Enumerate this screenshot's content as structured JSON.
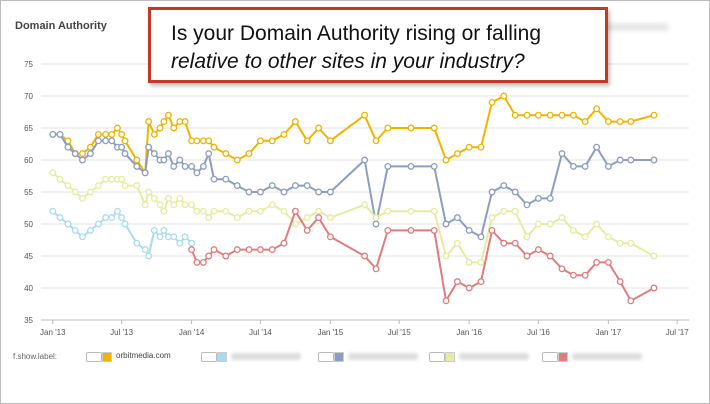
{
  "header": {
    "title": "Domain Authority"
  },
  "callout": {
    "line1": "Is your Domain Authority rising or falling",
    "line2": "relative to other sites in your industry?"
  },
  "legend": {
    "label": "f.show.label:",
    "items": [
      {
        "name": "orbitmedia.com",
        "color": "#f0b400"
      },
      {
        "name": "",
        "color": "#a9dcf0"
      },
      {
        "name": "",
        "color": "#8e9dbf"
      },
      {
        "name": "",
        "color": "#e6ec9e"
      },
      {
        "name": "",
        "color": "#e07c7c"
      }
    ]
  },
  "chart_data": {
    "type": "line",
    "title": "Domain Authority",
    "xlabel": "",
    "ylabel": "",
    "ylim": [
      35,
      75
    ],
    "yticks": [
      35,
      40,
      45,
      50,
      55,
      60,
      65,
      70,
      75
    ],
    "xlim": [
      "2012-12-01",
      "2017-08-01"
    ],
    "xticks": [
      {
        "date": "2013-01-01",
        "label": "Jan '13"
      },
      {
        "date": "2013-07-01",
        "label": "Jul '13"
      },
      {
        "date": "2014-01-01",
        "label": "Jan '14"
      },
      {
        "date": "2014-07-01",
        "label": "Jul '14"
      },
      {
        "date": "2015-01-01",
        "label": "Jan '15"
      },
      {
        "date": "2015-07-01",
        "label": "Jul '15"
      },
      {
        "date": "2016-01-01",
        "label": "Jan '16"
      },
      {
        "date": "2016-07-01",
        "label": "Jul '16"
      },
      {
        "date": "2017-01-01",
        "label": "Jan '17"
      },
      {
        "date": "2017-07-01",
        "label": "Jul '17"
      }
    ],
    "grid": true,
    "series": [
      {
        "name": "orbitmedia.com",
        "color": "#f0b400",
        "points": [
          [
            "2013-01-01",
            64
          ],
          [
            "2013-01-20",
            64
          ],
          [
            "2013-02-10",
            63
          ],
          [
            "2013-03-01",
            61
          ],
          [
            "2013-03-20",
            61
          ],
          [
            "2013-04-10",
            62
          ],
          [
            "2013-05-01",
            64
          ],
          [
            "2013-05-20",
            64
          ],
          [
            "2013-06-05",
            64
          ],
          [
            "2013-06-20",
            65
          ],
          [
            "2013-07-01",
            64
          ],
          [
            "2013-07-10",
            63
          ],
          [
            "2013-08-10",
            60
          ],
          [
            "2013-09-01",
            58
          ],
          [
            "2013-09-10",
            66
          ],
          [
            "2013-09-25",
            64
          ],
          [
            "2013-10-10",
            65
          ],
          [
            "2013-10-20",
            66
          ],
          [
            "2013-11-01",
            67
          ],
          [
            "2013-11-15",
            65
          ],
          [
            "2013-12-01",
            66
          ],
          [
            "2013-12-15",
            66
          ],
          [
            "2014-01-01",
            63
          ],
          [
            "2014-01-15",
            63
          ],
          [
            "2014-02-01",
            63
          ],
          [
            "2014-02-15",
            63
          ],
          [
            "2014-03-01",
            62
          ],
          [
            "2014-04-01",
            61
          ],
          [
            "2014-05-01",
            60
          ],
          [
            "2014-06-01",
            61
          ],
          [
            "2014-07-01",
            63
          ],
          [
            "2014-08-01",
            63
          ],
          [
            "2014-09-01",
            64
          ],
          [
            "2014-10-01",
            66
          ],
          [
            "2014-11-01",
            63
          ],
          [
            "2014-12-01",
            65
          ],
          [
            "2015-01-01",
            63
          ],
          [
            "2015-04-01",
            67
          ],
          [
            "2015-05-01",
            63
          ],
          [
            "2015-06-01",
            65
          ],
          [
            "2015-08-01",
            65
          ],
          [
            "2015-10-01",
            65
          ],
          [
            "2015-11-01",
            60
          ],
          [
            "2015-12-01",
            61
          ],
          [
            "2016-01-01",
            62
          ],
          [
            "2016-02-01",
            62
          ],
          [
            "2016-03-01",
            69
          ],
          [
            "2016-04-01",
            70
          ],
          [
            "2016-05-01",
            67
          ],
          [
            "2016-06-01",
            67
          ],
          [
            "2016-07-01",
            67
          ],
          [
            "2016-08-01",
            67
          ],
          [
            "2016-09-01",
            67
          ],
          [
            "2016-10-01",
            67
          ],
          [
            "2016-11-01",
            66
          ],
          [
            "2016-12-01",
            68
          ],
          [
            "2017-01-01",
            66
          ],
          [
            "2017-02-01",
            66
          ],
          [
            "2017-03-01",
            66
          ],
          [
            "2017-05-01",
            67
          ]
        ]
      },
      {
        "name": "",
        "color": "#a9dcf0",
        "points": [
          [
            "2013-01-01",
            52
          ],
          [
            "2013-01-20",
            51
          ],
          [
            "2013-02-10",
            50
          ],
          [
            "2013-03-01",
            49
          ],
          [
            "2013-03-20",
            48
          ],
          [
            "2013-04-10",
            49
          ],
          [
            "2013-05-01",
            50
          ],
          [
            "2013-05-20",
            51
          ],
          [
            "2013-06-05",
            51
          ],
          [
            "2013-06-20",
            52
          ],
          [
            "2013-07-01",
            51
          ],
          [
            "2013-07-10",
            50
          ],
          [
            "2013-08-10",
            47
          ],
          [
            "2013-09-01",
            46
          ],
          [
            "2013-09-10",
            45
          ],
          [
            "2013-09-25",
            49
          ],
          [
            "2013-10-10",
            48
          ],
          [
            "2013-10-20",
            49
          ],
          [
            "2013-11-01",
            48
          ],
          [
            "2013-11-15",
            48
          ],
          [
            "2013-12-01",
            47
          ],
          [
            "2013-12-15",
            48
          ],
          [
            "2014-01-01",
            47
          ]
        ]
      },
      {
        "name": "",
        "color": "#8e9dbf",
        "points": [
          [
            "2013-01-01",
            64
          ],
          [
            "2013-01-20",
            64
          ],
          [
            "2013-02-10",
            62
          ],
          [
            "2013-03-01",
            61
          ],
          [
            "2013-03-20",
            60
          ],
          [
            "2013-04-10",
            61
          ],
          [
            "2013-05-01",
            63
          ],
          [
            "2013-05-20",
            63
          ],
          [
            "2013-06-05",
            63
          ],
          [
            "2013-06-20",
            62
          ],
          [
            "2013-07-01",
            62
          ],
          [
            "2013-07-10",
            61
          ],
          [
            "2013-08-10",
            59
          ],
          [
            "2013-09-01",
            58
          ],
          [
            "2013-09-10",
            62
          ],
          [
            "2013-09-25",
            61
          ],
          [
            "2013-10-10",
            60
          ],
          [
            "2013-10-20",
            60
          ],
          [
            "2013-11-01",
            61
          ],
          [
            "2013-11-15",
            59
          ],
          [
            "2013-12-01",
            60
          ],
          [
            "2013-12-15",
            59
          ],
          [
            "2014-01-01",
            59
          ],
          [
            "2014-01-15",
            58
          ],
          [
            "2014-02-01",
            59
          ],
          [
            "2014-02-15",
            61
          ],
          [
            "2014-03-01",
            57
          ],
          [
            "2014-04-01",
            57
          ],
          [
            "2014-05-01",
            56
          ],
          [
            "2014-06-01",
            55
          ],
          [
            "2014-07-01",
            55
          ],
          [
            "2014-08-01",
            56
          ],
          [
            "2014-09-01",
            55
          ],
          [
            "2014-10-01",
            56
          ],
          [
            "2014-11-01",
            56
          ],
          [
            "2014-12-01",
            55
          ],
          [
            "2015-01-01",
            55
          ],
          [
            "2015-04-01",
            60
          ],
          [
            "2015-05-01",
            50
          ],
          [
            "2015-06-01",
            59
          ],
          [
            "2015-08-01",
            59
          ],
          [
            "2015-10-01",
            59
          ],
          [
            "2015-11-01",
            50
          ],
          [
            "2015-12-01",
            51
          ],
          [
            "2016-01-01",
            49
          ],
          [
            "2016-02-01",
            48
          ],
          [
            "2016-03-01",
            55
          ],
          [
            "2016-04-01",
            56
          ],
          [
            "2016-05-01",
            55
          ],
          [
            "2016-06-01",
            53
          ],
          [
            "2016-07-01",
            54
          ],
          [
            "2016-08-01",
            54
          ],
          [
            "2016-09-01",
            61
          ],
          [
            "2016-10-01",
            59
          ],
          [
            "2016-11-01",
            59
          ],
          [
            "2016-12-01",
            62
          ],
          [
            "2017-01-01",
            59
          ],
          [
            "2017-02-01",
            60
          ],
          [
            "2017-03-01",
            60
          ],
          [
            "2017-05-01",
            60
          ]
        ]
      },
      {
        "name": "",
        "color": "#e6ec9e",
        "points": [
          [
            "2013-01-01",
            58
          ],
          [
            "2013-01-20",
            57
          ],
          [
            "2013-02-10",
            56
          ],
          [
            "2013-03-01",
            55
          ],
          [
            "2013-03-20",
            54
          ],
          [
            "2013-04-10",
            55
          ],
          [
            "2013-05-01",
            56
          ],
          [
            "2013-05-20",
            57
          ],
          [
            "2013-06-05",
            57
          ],
          [
            "2013-06-20",
            57
          ],
          [
            "2013-07-01",
            57
          ],
          [
            "2013-07-10",
            56
          ],
          [
            "2013-08-10",
            56
          ],
          [
            "2013-09-01",
            53
          ],
          [
            "2013-09-10",
            55
          ],
          [
            "2013-09-25",
            54
          ],
          [
            "2013-10-10",
            53
          ],
          [
            "2013-10-20",
            52
          ],
          [
            "2013-11-01",
            54
          ],
          [
            "2013-11-15",
            53
          ],
          [
            "2013-12-01",
            54
          ],
          [
            "2013-12-15",
            53
          ],
          [
            "2014-01-01",
            53
          ],
          [
            "2014-01-15",
            52
          ],
          [
            "2014-02-01",
            52
          ],
          [
            "2014-02-15",
            51
          ],
          [
            "2014-03-01",
            52
          ],
          [
            "2014-04-01",
            52
          ],
          [
            "2014-05-01",
            51
          ],
          [
            "2014-06-01",
            52
          ],
          [
            "2014-07-01",
            52
          ],
          [
            "2014-08-01",
            53
          ],
          [
            "2014-09-01",
            52
          ],
          [
            "2014-10-01",
            50
          ],
          [
            "2014-11-01",
            51
          ],
          [
            "2014-12-01",
            52
          ],
          [
            "2015-01-01",
            51
          ],
          [
            "2015-04-01",
            53
          ],
          [
            "2015-05-01",
            51
          ],
          [
            "2015-06-01",
            52
          ],
          [
            "2015-08-01",
            52
          ],
          [
            "2015-10-01",
            52
          ],
          [
            "2015-11-01",
            45
          ],
          [
            "2015-12-01",
            47
          ],
          [
            "2016-01-01",
            44
          ],
          [
            "2016-02-01",
            44
          ],
          [
            "2016-03-01",
            51
          ],
          [
            "2016-04-01",
            52
          ],
          [
            "2016-05-01",
            52
          ],
          [
            "2016-06-01",
            48
          ],
          [
            "2016-07-01",
            50
          ],
          [
            "2016-08-01",
            50
          ],
          [
            "2016-09-01",
            51
          ],
          [
            "2016-10-01",
            49
          ],
          [
            "2016-11-01",
            48
          ],
          [
            "2016-12-01",
            50
          ],
          [
            "2017-01-01",
            48
          ],
          [
            "2017-02-01",
            47
          ],
          [
            "2017-03-01",
            47
          ],
          [
            "2017-05-01",
            45
          ]
        ]
      },
      {
        "name": "",
        "color": "#e07c7c",
        "points": [
          [
            "2014-01-01",
            46
          ],
          [
            "2014-01-15",
            44
          ],
          [
            "2014-02-01",
            44
          ],
          [
            "2014-02-15",
            45
          ],
          [
            "2014-03-01",
            46
          ],
          [
            "2014-04-01",
            45
          ],
          [
            "2014-05-01",
            46
          ],
          [
            "2014-06-01",
            46
          ],
          [
            "2014-07-01",
            46
          ],
          [
            "2014-08-01",
            46
          ],
          [
            "2014-09-01",
            47
          ],
          [
            "2014-10-01",
            52
          ],
          [
            "2014-11-01",
            49
          ],
          [
            "2014-12-01",
            51
          ],
          [
            "2015-01-01",
            48
          ],
          [
            "2015-04-01",
            45
          ],
          [
            "2015-05-01",
            43
          ],
          [
            "2015-06-01",
            49
          ],
          [
            "2015-08-01",
            49
          ],
          [
            "2015-10-01",
            49
          ],
          [
            "2015-11-01",
            38
          ],
          [
            "2015-12-01",
            41
          ],
          [
            "2016-01-01",
            40
          ],
          [
            "2016-02-01",
            41
          ],
          [
            "2016-03-01",
            49
          ],
          [
            "2016-04-01",
            47
          ],
          [
            "2016-05-01",
            47
          ],
          [
            "2016-06-01",
            45
          ],
          [
            "2016-07-01",
            46
          ],
          [
            "2016-08-01",
            45
          ],
          [
            "2016-09-01",
            43
          ],
          [
            "2016-10-01",
            42
          ],
          [
            "2016-11-01",
            42
          ],
          [
            "2016-12-01",
            44
          ],
          [
            "2017-01-01",
            44
          ],
          [
            "2017-02-01",
            41
          ],
          [
            "2017-03-01",
            38
          ],
          [
            "2017-05-01",
            40
          ]
        ]
      }
    ]
  }
}
